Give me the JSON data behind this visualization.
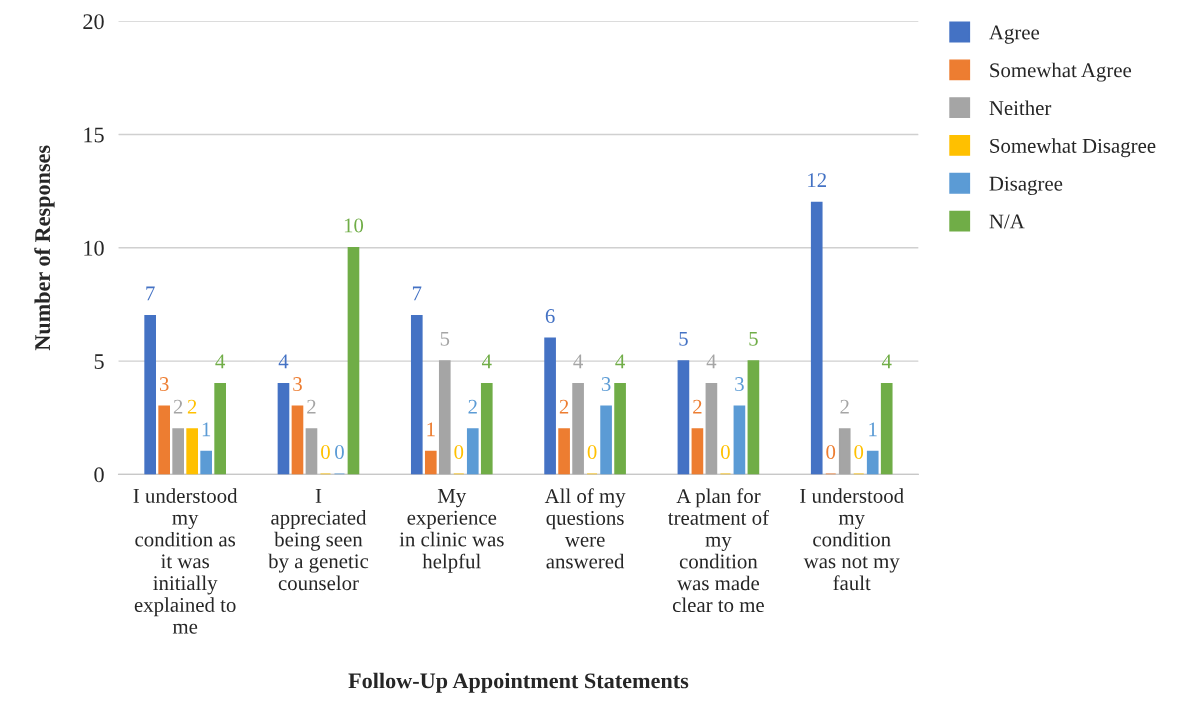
{
  "chart_data": {
    "type": "bar",
    "xlabel": "Follow-Up Appointment Statements",
    "ylabel": "Number of Responses",
    "categories": [
      "I understood\nmy\ncondition as\nit was\ninitially\nexplained to\nme",
      "I\nappreciated\nbeing seen\nby a genetic\ncounselor",
      "My\nexperience\nin clinic was\nhelpful",
      "All of my\nquestions\nwere\nanswered",
      "A plan for\ntreatment of\nmy\ncondition\nwas made\nclear to me",
      "I understood\nmy\ncondition\nwas not my\nfault"
    ],
    "series": [
      {
        "name": "Agree",
        "color": "#4472c4",
        "values": [
          7,
          4,
          7,
          6,
          5,
          12
        ]
      },
      {
        "name": "Somewhat Agree",
        "color": "#ed7d31",
        "values": [
          3,
          3,
          1,
          2,
          2,
          0
        ]
      },
      {
        "name": "Neither",
        "color": "#a5a5a5",
        "values": [
          2,
          2,
          5,
          4,
          4,
          2
        ]
      },
      {
        "name": "Somewhat Disagree",
        "color": "#ffc000",
        "values": [
          2,
          0,
          0,
          0,
          0,
          0
        ]
      },
      {
        "name": "Disagree",
        "color": "#5b9bd5",
        "values": [
          1,
          0,
          2,
          3,
          3,
          1
        ]
      },
      {
        "name": "N/A",
        "color": "#70ad47",
        "values": [
          4,
          10,
          4,
          4,
          5,
          4
        ]
      }
    ],
    "ylim": [
      0,
      20
    ],
    "yticks": [
      0,
      5,
      10,
      15,
      20
    ],
    "grid": "y",
    "legend": "right",
    "data_labels": true
  }
}
